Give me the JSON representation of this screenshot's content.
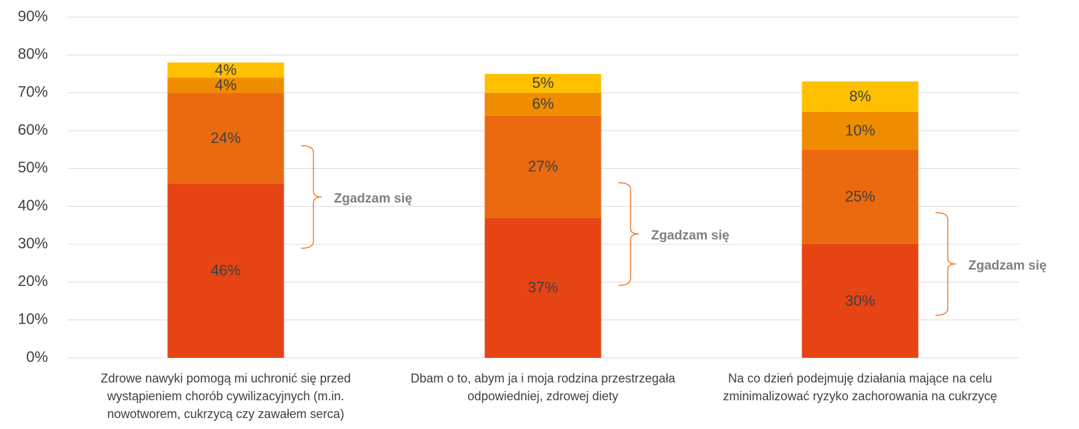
{
  "chart_data": {
    "type": "stacked_bar",
    "categories": [
      "Zdrowe nawyki pomogą mi uchronić się przed wystąpieniem chorób cywilizacyjnych (m.in. nowotworem, cukrzycą czy zawałem serca)",
      "Dbam o to, abym ja i moja rodzina przestrzegała odpowiedniej, zdrowej diety",
      "Na co dzień podejmuję działania mające na celu zminimalizować ryzyko zachorowania na cukrzycę"
    ],
    "series": [
      {
        "color": "#E64415",
        "values": [
          46,
          37,
          30
        ],
        "value_labels": [
          "46%",
          "37%",
          "30%"
        ]
      },
      {
        "color": "#EB6A10",
        "values": [
          24,
          27,
          25
        ],
        "value_labels": [
          "24%",
          "27%",
          "25%"
        ]
      },
      {
        "color": "#F08C00",
        "values": [
          4,
          6,
          10
        ],
        "value_labels": [
          "4%",
          "6%",
          "10%"
        ]
      },
      {
        "color": "#FFC000",
        "values": [
          4,
          5,
          8
        ],
        "value_labels": [
          "4%",
          "5%",
          "8%"
        ]
      }
    ],
    "ylim": [
      0,
      90
    ],
    "yticks": [
      {
        "value": 0,
        "label": "0%"
      },
      {
        "value": 10,
        "label": "10%"
      },
      {
        "value": 20,
        "label": "20%"
      },
      {
        "value": 30,
        "label": "30%"
      },
      {
        "value": 40,
        "label": "40%"
      },
      {
        "value": 50,
        "label": "50%"
      },
      {
        "value": 60,
        "label": "60%"
      },
      {
        "value": 70,
        "label": "70%"
      },
      {
        "value": 80,
        "label": "80%"
      },
      {
        "value": 90,
        "label": "90%"
      }
    ],
    "grid": true,
    "annotations": [
      "Zgadzam się",
      "Zgadzam się",
      "Zgadzam się"
    ]
  }
}
